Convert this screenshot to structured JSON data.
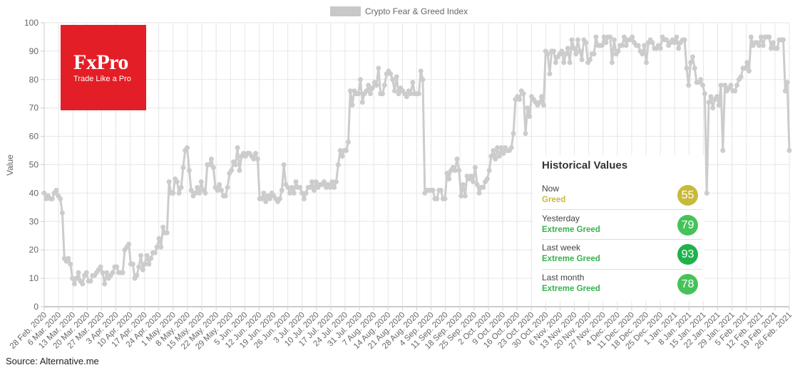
{
  "chart_data": {
    "type": "line",
    "legend": {
      "label": "Crypto Fear & Greed Index",
      "placement": "top",
      "color": "#c8c8c8"
    },
    "ylabel": "Value",
    "ylim": [
      0,
      100
    ],
    "yticks": [
      0,
      10,
      20,
      30,
      40,
      50,
      60,
      70,
      80,
      90,
      100
    ],
    "grid": true,
    "line_color": "#cccccc",
    "start_date": "2020-02-28",
    "xtick_labels": [
      "28 Feb. 2020",
      "6 Mar. 2020",
      "13 Mar. 2020",
      "20 Mar. 2020",
      "27 Mar. 2020",
      "3 Apr. 2020",
      "10 Apr. 2020",
      "17 Apr. 2020",
      "24 Apr. 2020",
      "1 May. 2020",
      "8 May. 2020",
      "15 May. 2020",
      "22 May. 2020",
      "29 May. 2020",
      "5 Jun. 2020",
      "12 Jun. 2020",
      "19 Jun. 2020",
      "26 Jun. 2020",
      "3 Jul. 2020",
      "10 Jul. 2020",
      "17 Jul. 2020",
      "24 Jul. 2020",
      "31 Jul. 2020",
      "7 Aug. 2020",
      "14 Aug. 2020",
      "21 Aug. 2020",
      "28 Aug. 2020",
      "4 Sep. 2020",
      "11 Sep. 2020",
      "18 Sep. 2020",
      "25 Sep. 2020",
      "2 Oct. 2020",
      "9 Oct. 2020",
      "16 Oct. 2020",
      "23 Oct. 2020",
      "30 Oct. 2020",
      "6 Nov. 2020",
      "13 Nov. 2020",
      "20 Nov. 2020",
      "27 Nov. 2020",
      "4 Dec. 2020",
      "11 Dec. 2020",
      "18 Dec. 2020",
      "25 Dec. 2020",
      "1 Jan. 2021",
      "8 Jan. 2021",
      "15 Jan. 2021",
      "22 Jan. 2021",
      "29 Jan. 2021",
      "5 Feb. 2021",
      "12 Feb. 2021",
      "19 Feb. 2021",
      "26 Feb. 2021"
    ],
    "values": [
      40,
      38,
      39,
      38,
      38,
      40,
      41,
      39,
      38,
      33,
      17,
      16,
      17,
      15,
      10,
      8,
      10,
      12,
      9,
      8,
      11,
      12,
      9,
      9,
      11,
      11,
      12,
      13,
      14,
      12,
      8,
      12,
      10,
      11,
      12,
      14,
      14,
      12,
      12,
      12,
      20,
      21,
      22,
      15,
      15,
      10,
      11,
      14,
      18,
      13,
      15,
      18,
      15,
      17,
      19,
      19,
      21,
      24,
      21,
      28,
      26,
      26,
      44,
      40,
      40,
      45,
      44,
      40,
      42,
      49,
      55,
      56,
      48,
      41,
      39,
      40,
      42,
      40,
      44,
      41,
      40,
      50,
      50,
      52,
      49,
      42,
      41,
      43,
      41,
      39,
      39,
      42,
      47,
      48,
      51,
      50,
      56,
      48,
      53,
      54,
      53,
      54,
      54,
      53,
      52,
      54,
      52,
      38,
      38,
      40,
      37,
      39,
      38,
      40,
      39,
      38,
      37,
      38,
      41,
      50,
      43,
      42,
      40,
      42,
      40,
      44,
      42,
      42,
      40,
      38,
      40,
      42,
      42,
      44,
      41,
      44,
      42,
      43,
      43,
      44,
      42,
      43,
      42,
      44,
      42,
      44,
      50,
      55,
      53,
      55,
      55,
      58,
      76,
      71,
      76,
      75,
      75,
      80,
      72,
      75,
      76,
      78,
      75,
      77,
      79,
      78,
      84,
      75,
      75,
      78,
      82,
      83,
      82,
      80,
      76,
      81,
      75,
      77,
      76,
      75,
      74,
      76,
      75,
      79,
      75,
      75,
      75,
      83,
      80,
      40,
      41,
      41,
      41,
      41,
      38,
      38,
      41,
      41,
      38,
      38,
      47,
      45,
      48,
      49,
      48,
      52,
      48,
      39,
      43,
      39,
      46,
      45,
      46,
      44,
      49,
      43,
      40,
      42,
      42,
      44,
      45,
      48,
      53,
      55,
      52,
      56,
      53,
      56,
      54,
      56,
      55,
      55,
      56,
      61,
      73,
      74,
      73,
      76,
      75,
      61,
      70,
      67,
      74,
      73,
      72,
      71,
      72,
      74,
      71,
      90,
      89,
      82,
      90,
      90,
      86,
      88,
      89,
      90,
      86,
      89,
      91,
      86,
      94,
      91,
      89,
      94,
      90,
      87,
      94,
      93,
      86,
      87,
      89,
      89,
      95,
      92,
      92,
      92,
      95,
      93,
      95,
      95,
      86,
      94,
      89,
      90,
      92,
      92,
      95,
      92,
      94,
      94,
      95,
      93,
      92,
      92,
      90,
      89,
      92,
      86,
      93,
      94,
      93,
      91,
      91,
      92,
      91,
      95,
      94,
      94,
      92,
      93,
      94,
      93,
      95,
      91,
      93,
      94,
      94,
      84,
      78,
      86,
      88,
      84,
      79,
      79,
      80,
      78,
      75,
      40,
      72,
      74,
      70,
      73,
      74,
      71,
      78,
      55,
      78,
      76,
      77,
      78,
      76,
      76,
      78,
      80,
      81,
      84,
      84,
      86,
      83,
      95,
      92,
      93,
      93,
      92,
      95,
      92,
      95,
      95,
      95,
      91,
      93,
      91,
      91,
      94,
      94,
      94,
      76,
      79,
      55
    ]
  },
  "logo": {
    "name": "FxPro",
    "tagline": "Trade Like a Pro",
    "color": "#e41e26"
  },
  "historical": {
    "title": "Historical Values",
    "rows": [
      {
        "label": "Now",
        "classification": "Greed",
        "value": "55",
        "badge_color": "#c8b93a",
        "text_color": "#c8b93a"
      },
      {
        "label": "Yesterday",
        "classification": "Extreme Greed",
        "value": "79",
        "badge_color": "#45c35a",
        "text_color": "#38b24f"
      },
      {
        "label": "Last week",
        "classification": "Extreme Greed",
        "value": "93",
        "badge_color": "#1fb24a",
        "text_color": "#38b24f"
      },
      {
        "label": "Last month",
        "classification": "Extreme Greed",
        "value": "78",
        "badge_color": "#45c35a",
        "text_color": "#38b24f"
      }
    ]
  },
  "source": "Source: Alternative.me"
}
